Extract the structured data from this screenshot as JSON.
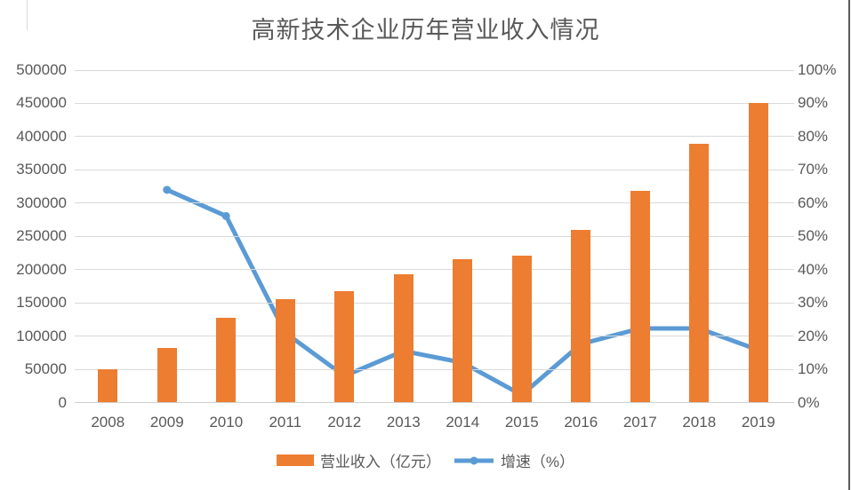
{
  "chart_data": {
    "type": "bar+line combo",
    "title": "高新技术企业历年营业收入情况",
    "categories": [
      "2008",
      "2009",
      "2010",
      "2011",
      "2012",
      "2013",
      "2014",
      "2015",
      "2016",
      "2017",
      "2018",
      "2019"
    ],
    "series": [
      {
        "name": "营业收入（亿元）",
        "type": "bar",
        "axis": "left",
        "color": "#ED7D31",
        "values": [
          50000,
          82000,
          128000,
          155000,
          167000,
          193000,
          216000,
          221000,
          260000,
          318000,
          389000,
          450000
        ]
      },
      {
        "name": "增速（%）",
        "type": "line",
        "axis": "right",
        "color": "#5B9BD5",
        "values": [
          null,
          64.0,
          56.1,
          21.0,
          8.0,
          15.5,
          12.0,
          2.3,
          17.6,
          22.3,
          22.3,
          15.8
        ]
      }
    ],
    "left_axis": {
      "min": 0,
      "max": 500000,
      "step": 50000,
      "tick_labels": [
        "0",
        "50000",
        "100000",
        "150000",
        "200000",
        "250000",
        "300000",
        "350000",
        "400000",
        "450000",
        "500000"
      ]
    },
    "right_axis": {
      "min": 0,
      "max": 100,
      "step": 10,
      "tick_labels": [
        "0%",
        "10%",
        "20%",
        "30%",
        "40%",
        "50%",
        "60%",
        "70%",
        "80%",
        "90%",
        "100%"
      ]
    },
    "grid": true,
    "legend_position": "bottom",
    "colors": {
      "bar": "#ED7D31",
      "line": "#5B9BD5",
      "gridline": "#D9D9D9",
      "axis_text": "#595959",
      "title_text": "#595959"
    }
  }
}
